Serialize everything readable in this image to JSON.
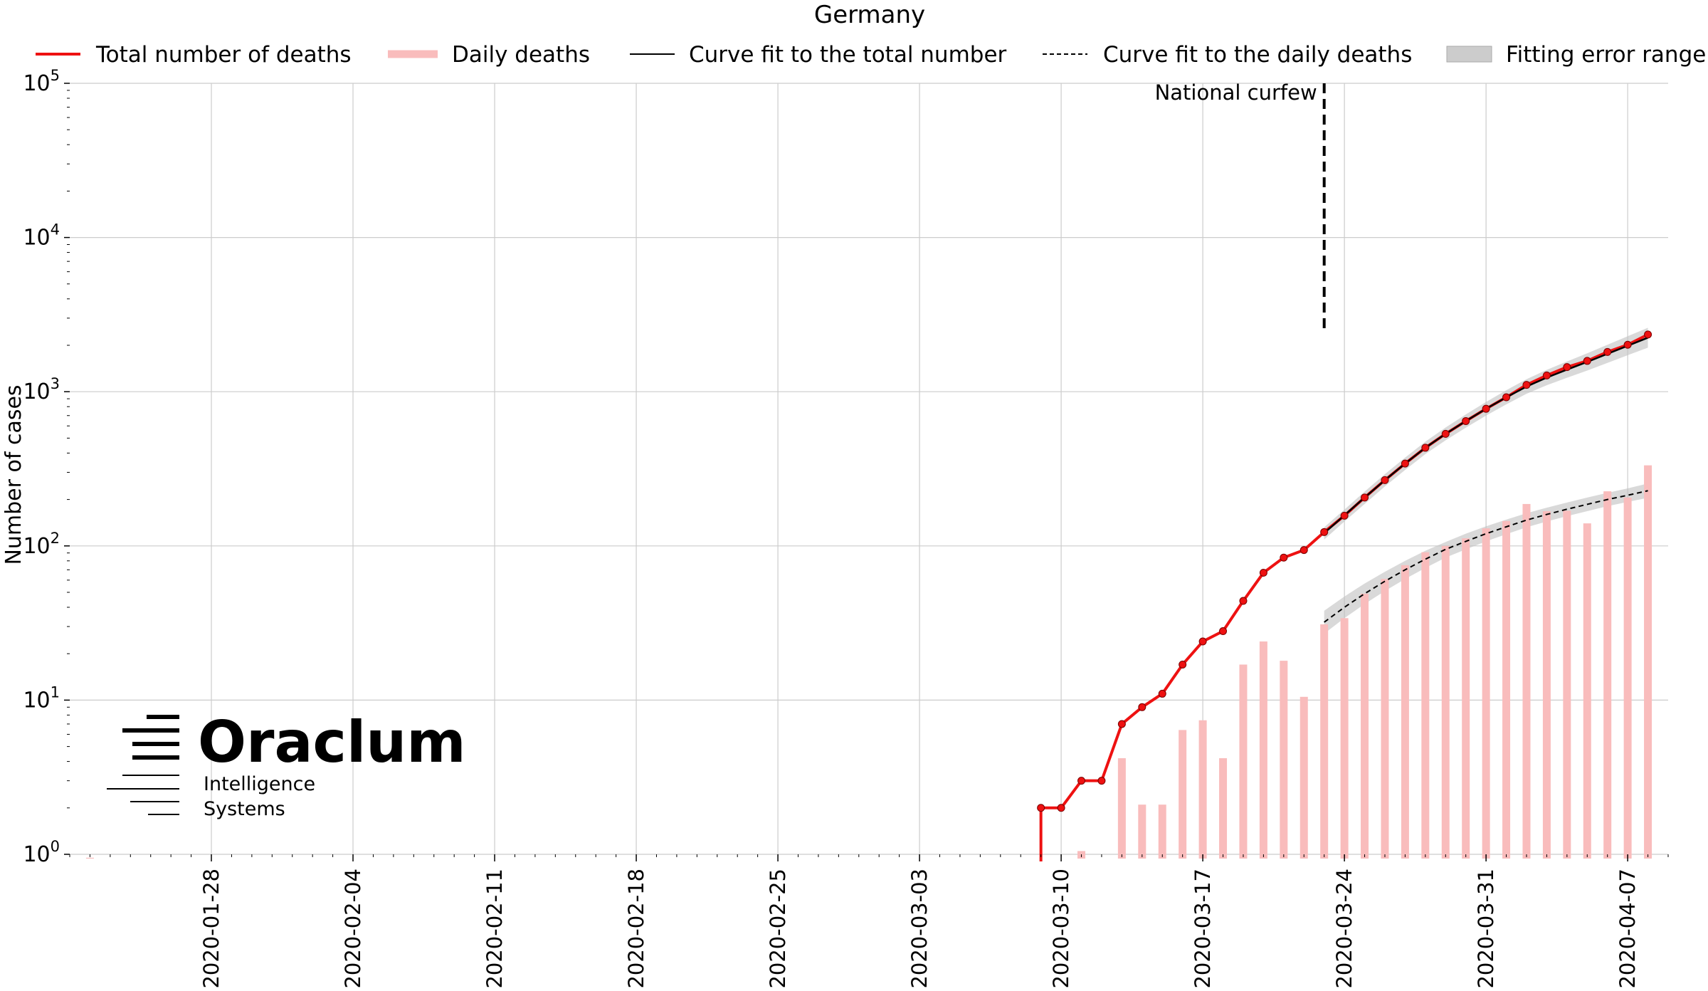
{
  "chart_data": {
    "type": "line",
    "title": "Germany",
    "ylabel": "Number of cases",
    "xlabel": "",
    "y_scale": "log",
    "ylim": [
      1,
      100000
    ],
    "xlim": [
      "2020-01-21",
      "2020-04-09"
    ],
    "x_ticks": [
      "2020-01-28",
      "2020-02-04",
      "2020-02-11",
      "2020-02-18",
      "2020-02-25",
      "2020-03-03",
      "2020-03-10",
      "2020-03-17",
      "2020-03-24",
      "2020-03-31",
      "2020-04-07"
    ],
    "y_ticks": [
      {
        "value": 1,
        "base": "10",
        "exp": "0"
      },
      {
        "value": 10,
        "base": "10",
        "exp": "1"
      },
      {
        "value": 100,
        "base": "10",
        "exp": "2"
      },
      {
        "value": 1000,
        "base": "10",
        "exp": "3"
      },
      {
        "value": 10000,
        "base": "10",
        "exp": "4"
      },
      {
        "value": 100000,
        "base": "10",
        "exp": "5"
      }
    ],
    "grid": true,
    "legend_position": "top",
    "legend": [
      {
        "label": "Total number of deaths",
        "kind": "line",
        "color": "#ee1111"
      },
      {
        "label": "Daily deaths",
        "kind": "thickline",
        "color": "#f9bcbc"
      },
      {
        "label": "Curve fit to the total number",
        "kind": "line",
        "color": "#000000"
      },
      {
        "label": "Curve fit to the daily deaths",
        "kind": "dashed",
        "color": "#000000"
      },
      {
        "label": "Fitting error range",
        "kind": "patch",
        "color": "#cccccc"
      }
    ],
    "annotation": {
      "text": "National curfew",
      "x": "2020-03-23",
      "y_top": 100000,
      "y_bottom": 2400
    },
    "series": [
      {
        "name": "Total number of deaths",
        "color": "#ee1111",
        "x": [
          "2020-03-09",
          "2020-03-10",
          "2020-03-11",
          "2020-03-12",
          "2020-03-13",
          "2020-03-14",
          "2020-03-15",
          "2020-03-16",
          "2020-03-17",
          "2020-03-18",
          "2020-03-19",
          "2020-03-20",
          "2020-03-21",
          "2020-03-22",
          "2020-03-23",
          "2020-03-24",
          "2020-03-25",
          "2020-03-26",
          "2020-03-27",
          "2020-03-28",
          "2020-03-29",
          "2020-03-30",
          "2020-03-31",
          "2020-04-01",
          "2020-04-02",
          "2020-04-03",
          "2020-04-04",
          "2020-04-05",
          "2020-04-06",
          "2020-04-07",
          "2020-04-08"
        ],
        "values": [
          2,
          2,
          3,
          3,
          7,
          9,
          11,
          17,
          24,
          28,
          44,
          67,
          84,
          94,
          123,
          157,
          206,
          267,
          342,
          433,
          533,
          645,
          775,
          920,
          1107,
          1275,
          1444,
          1584,
          1810,
          2016,
          2349
        ]
      },
      {
        "name": "Daily deaths",
        "color": "#f9bcbc",
        "x": [
          "2020-01-22",
          "2020-03-11",
          "2020-03-13",
          "2020-03-14",
          "2020-03-15",
          "2020-03-16",
          "2020-03-17",
          "2020-03-18",
          "2020-03-19",
          "2020-03-20",
          "2020-03-21",
          "2020-03-22",
          "2020-03-23",
          "2020-03-24",
          "2020-03-25",
          "2020-03-26",
          "2020-03-27",
          "2020-03-28",
          "2020-03-29",
          "2020-03-30",
          "2020-03-31",
          "2020-04-01",
          "2020-04-02",
          "2020-04-03",
          "2020-04-04",
          "2020-04-05",
          "2020-04-06",
          "2020-04-07",
          "2020-04-08"
        ],
        "values": [
          0.95,
          1.05,
          4.2,
          2.1,
          2.1,
          6.4,
          7.4,
          4.2,
          17,
          24,
          18,
          10.5,
          31,
          34,
          49,
          61,
          75,
          91,
          100,
          112,
          130,
          145,
          187,
          168,
          169,
          140,
          226,
          206,
          333
        ]
      },
      {
        "name": "Curve fit to the total number",
        "color": "#000000",
        "x": [
          "2020-03-23",
          "2020-03-24",
          "2020-03-25",
          "2020-03-26",
          "2020-03-27",
          "2020-03-28",
          "2020-03-29",
          "2020-03-30",
          "2020-03-31",
          "2020-04-01",
          "2020-04-02",
          "2020-04-03",
          "2020-04-04",
          "2020-04-05",
          "2020-04-06",
          "2020-04-07",
          "2020-04-08"
        ],
        "values": [
          121,
          158,
          206,
          267,
          342,
          433,
          533,
          645,
          775,
          920,
          1080,
          1235,
          1390,
          1560,
          1760,
          1985,
          2240
        ],
        "band_upper": [
          132,
          172,
          225,
          292,
          374,
          474,
          586,
          712,
          858,
          1022,
          1205,
          1386,
          1570,
          1775,
          2015,
          2290,
          2600
        ],
        "band_lower": [
          110,
          144,
          187,
          243,
          311,
          394,
          484,
          584,
          700,
          828,
          970,
          1102,
          1231,
          1372,
          1537,
          1725,
          1930
        ]
      },
      {
        "name": "Curve fit to the daily deaths",
        "color": "#000000",
        "x": [
          "2020-03-23",
          "2020-03-24",
          "2020-03-25",
          "2020-03-26",
          "2020-03-27",
          "2020-03-28",
          "2020-03-29",
          "2020-03-30",
          "2020-03-31",
          "2020-04-01",
          "2020-04-02",
          "2020-04-03",
          "2020-04-04",
          "2020-04-05",
          "2020-04-06",
          "2020-04-07",
          "2020-04-08"
        ],
        "values": [
          32,
          40,
          49,
          59,
          70,
          82,
          95,
          107,
          120,
          133,
          147,
          160,
          173,
          186,
          200,
          213,
          228
        ],
        "band_upper": [
          38,
          47,
          57,
          68,
          80,
          93,
          106,
          120,
          134,
          148,
          163,
          177,
          191,
          206,
          221,
          236,
          254
        ],
        "band_lower": [
          27,
          34,
          42,
          51,
          61,
          72,
          84,
          95,
          107,
          119,
          132,
          144,
          156,
          168,
          181,
          193,
          205
        ]
      }
    ]
  },
  "logo": {
    "name": "Oraclum",
    "line1": "Intelligence",
    "line2": "Systems"
  }
}
